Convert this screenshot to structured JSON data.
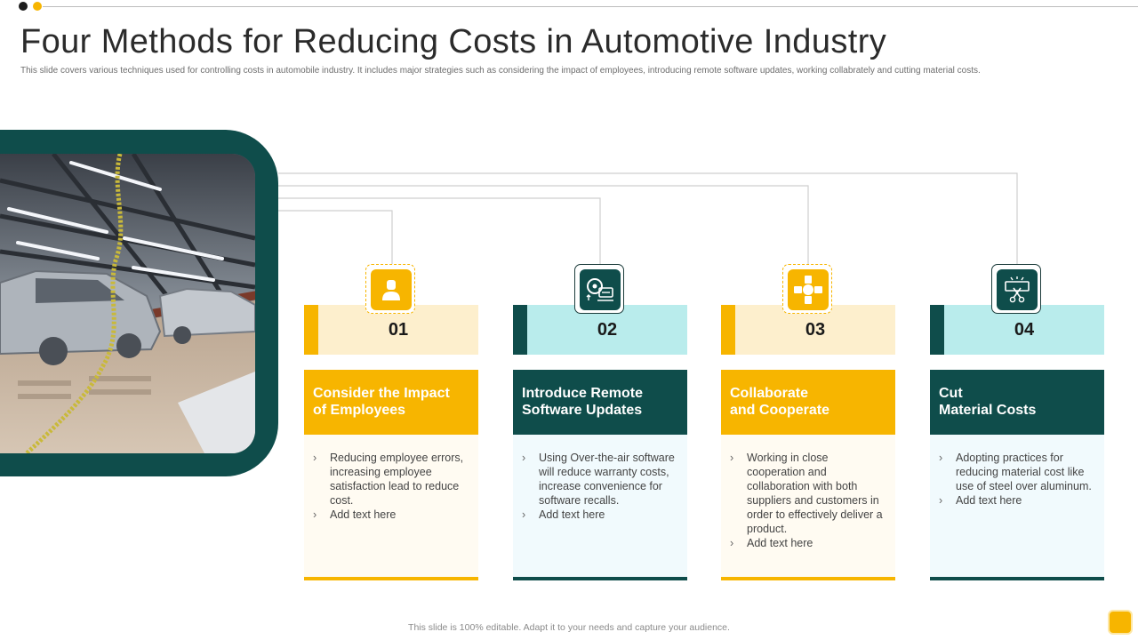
{
  "title": "Four Methods for Reducing Costs in Automotive Industry",
  "subtitle": "This slide covers various techniques used for controlling costs in automobile industry. It includes major strategies such as considering  the impact of employees, introducing remote software updates, working collabrately and cutting material costs.",
  "colors": {
    "yellow": "#f7b500",
    "teal": "#0f4d4b",
    "light_yellow": "#fdefcd",
    "light_teal": "#b9ecec"
  },
  "cards": [
    {
      "number": "01",
      "icon": "employee-icon",
      "heading_lines": [
        "Consider the Impact",
        "of Employees"
      ],
      "bullets": [
        "Reducing employee errors, increasing employee satisfaction lead to reduce cost.",
        "Add text here"
      ]
    },
    {
      "number": "02",
      "icon": "software-update-icon",
      "heading_lines": [
        "Introduce Remote",
        "Software Updates"
      ],
      "bullets": [
        "Using Over-the-air software will reduce warranty costs, increase convenience for software recalls.",
        "Add text here"
      ]
    },
    {
      "number": "03",
      "icon": "collaboration-icon",
      "heading_lines": [
        "Collaborate",
        "and Cooperate"
      ],
      "bullets": [
        "Working in close cooperation and collaboration with both suppliers and customers in order to effectively deliver  a product.",
        "Add text here"
      ]
    },
    {
      "number": "04",
      "icon": "cut-cost-icon",
      "heading_lines": [
        "Cut",
        "Material Costs"
      ],
      "bullets": [
        "Adopting practices for reducing material cost like use of steel over aluminum.",
        "Add text here"
      ]
    }
  ],
  "footer": "This slide is 100% editable. Adapt it to your needs and capture your audience."
}
